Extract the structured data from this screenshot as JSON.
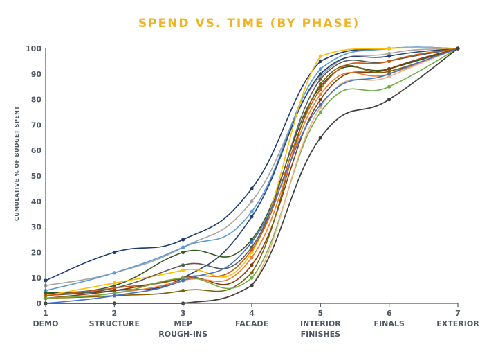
{
  "chart_data": {
    "type": "line",
    "title": "SPEND VS. TIME (BY PHASE)",
    "ylabel": "CUMULATIVE % OF BUDGET SPENT",
    "xlabel": "",
    "x": [
      1,
      2,
      3,
      4,
      5,
      6,
      7
    ],
    "x_tick_labels": [
      [
        "1",
        "DEMO"
      ],
      [
        "2",
        "STRUCTURE"
      ],
      [
        "3",
        "MEP",
        "ROUGH-INS"
      ],
      [
        "4",
        "FACADE"
      ],
      [
        "5",
        "INTERIOR",
        "FINISHES"
      ],
      [
        "6",
        "FINALS"
      ],
      [
        "7",
        "EXTERIOR"
      ]
    ],
    "y_ticks": [
      0,
      10,
      20,
      30,
      40,
      50,
      60,
      70,
      80,
      90,
      100
    ],
    "ylim": [
      0,
      100
    ],
    "xlim": [
      1,
      7
    ],
    "grid": false,
    "legend": "none",
    "smooth": true,
    "axis_color": "#4e5763",
    "title_color": "#f0b323",
    "series": [
      {
        "color": "#1f3b73",
        "values": [
          9,
          20,
          25,
          45,
          95,
          100,
          100
        ]
      },
      {
        "color": "#a5a5a5",
        "values": [
          7,
          12,
          22,
          40,
          89,
          98,
          100
        ]
      },
      {
        "color": "#5b9bd5",
        "values": [
          5,
          12,
          22,
          36,
          92,
          100,
          100
        ]
      },
      {
        "color": "#264478",
        "values": [
          4,
          5,
          10,
          34,
          90,
          97,
          100
        ]
      },
      {
        "color": "#375623",
        "values": [
          4,
          7,
          20,
          25,
          85,
          92,
          100
        ]
      },
      {
        "color": "#ffc000",
        "values": [
          3,
          8,
          13,
          20,
          97,
          100,
          100
        ]
      },
      {
        "color": "#595959",
        "values": [
          3,
          6,
          15,
          22,
          88,
          95,
          100
        ]
      },
      {
        "color": "#c55a11",
        "values": [
          3,
          6,
          10,
          21,
          84,
          95,
          100
        ]
      },
      {
        "color": "#843c0c",
        "values": [
          2,
          5,
          10,
          15,
          80,
          92,
          100
        ]
      },
      {
        "color": "#806000",
        "values": [
          2,
          3,
          5,
          12,
          86,
          91,
          100
        ]
      },
      {
        "color": "#ed7d31",
        "values": [
          2,
          4,
          9,
          18,
          82,
          90,
          100
        ]
      },
      {
        "color": "#70ad47",
        "values": [
          2,
          4,
          10,
          10,
          75,
          85,
          100
        ]
      },
      {
        "color": "#f4b183",
        "values": [
          0,
          0,
          0,
          7,
          77,
          89,
          100
        ]
      },
      {
        "color": "#4472c4",
        "values": [
          0,
          3,
          9,
          24,
          78,
          90,
          100
        ]
      },
      {
        "color": "#7f7f7f",
        "values": [
          0,
          0,
          0,
          7,
          65,
          80,
          100
        ]
      },
      {
        "color": "#404040",
        "values": [
          0,
          0,
          0,
          7,
          65,
          80,
          100
        ]
      }
    ]
  }
}
